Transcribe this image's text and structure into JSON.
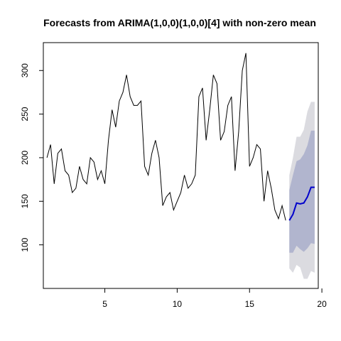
{
  "chart_data": {
    "type": "line",
    "title": "Forecasts from ARIMA(1,0,0)(1,0,0)[4] with non-zero mean",
    "xlabel": "",
    "ylabel": "",
    "xlim": [
      0.75,
      19.75
    ],
    "ylim": [
      50,
      332
    ],
    "x_ticks": [
      5,
      10,
      15,
      20
    ],
    "y_ticks": [
      100,
      150,
      200,
      250,
      300
    ],
    "grid": false,
    "legend": "none",
    "observed": {
      "start": 1,
      "frequency": 4,
      "color": "#000000",
      "values": [
        200,
        215,
        170,
        205,
        210,
        185,
        180,
        160,
        165,
        190,
        175,
        170,
        200,
        195,
        175,
        185,
        170,
        220,
        255,
        235,
        265,
        275,
        295,
        270,
        260,
        260,
        265,
        190,
        180,
        205,
        220,
        200,
        145,
        155,
        160,
        140,
        150,
        160,
        180,
        165,
        170,
        180,
        270,
        280,
        220,
        255,
        295,
        285,
        220,
        230,
        260,
        270,
        185,
        230,
        300,
        320,
        190,
        200,
        215,
        210,
        150,
        185,
        165,
        140,
        130,
        145,
        128
      ]
    },
    "forecast": {
      "start": 17.75,
      "frequency": 4,
      "color": "#0000cc",
      "point": [
        128,
        135,
        148,
        147,
        148,
        155,
        166,
        166
      ],
      "lo80": [
        91,
        91,
        99,
        95,
        92,
        96,
        102,
        101
      ],
      "hi80": [
        163,
        180,
        196,
        198,
        204,
        214,
        231,
        231
      ],
      "lo95": [
        73,
        68,
        77,
        74,
        61,
        61,
        70,
        68
      ],
      "hi95": [
        180,
        200,
        224,
        224,
        232,
        253,
        264,
        264
      ],
      "band80_color": "#b1b5ce",
      "band95_color": "#dbdbe0"
    }
  }
}
